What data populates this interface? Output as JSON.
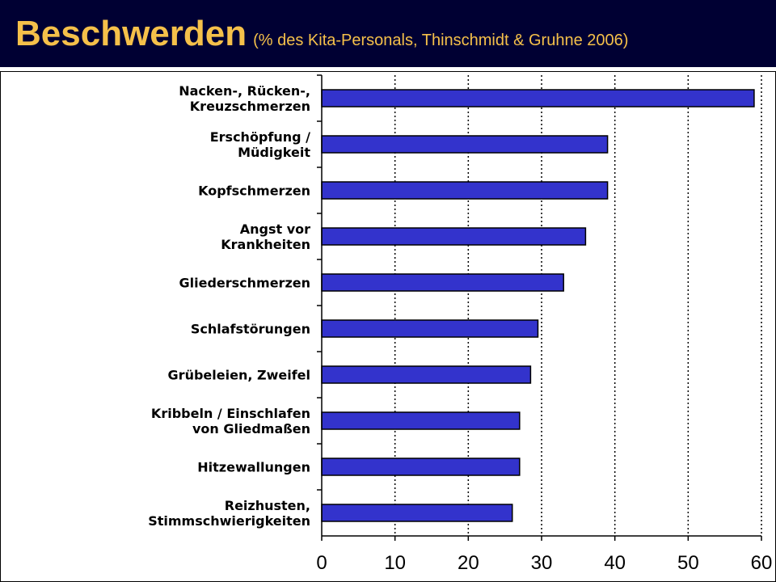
{
  "header": {
    "title": "Beschwerden",
    "subtitle": "(% des Kita-Personals, Thinschmidt & Gruhne 2006)",
    "background": "#000033",
    "title_color": "#f5c04a"
  },
  "chart_data": {
    "type": "bar",
    "orientation": "horizontal",
    "categories": [
      [
        "Nacken-, Rücken-,",
        "Kreuzschmerzen"
      ],
      [
        "Erschöpfung /",
        "Müdigkeit"
      ],
      [
        "Kopfschmerzen"
      ],
      [
        "Angst vor",
        "Krankheiten"
      ],
      [
        "Gliederschmerzen"
      ],
      [
        "Schlafstörungen"
      ],
      [
        "Grübeleien, Zweifel"
      ],
      [
        "Kribbeln / Einschlafen",
        "von Gliedmaßen"
      ],
      [
        "Hitzewallungen"
      ],
      [
        "Reizhusten,",
        "Stimmschwierigkeiten"
      ]
    ],
    "values": [
      59,
      39,
      39,
      36,
      33,
      29.5,
      28.5,
      27,
      27,
      26
    ],
    "xlim": [
      0,
      60
    ],
    "xticks": [
      "0",
      "10",
      "20",
      "30",
      "40",
      "50",
      "60"
    ],
    "grid": "vertical dotted",
    "bar_color": "#3333cc"
  }
}
